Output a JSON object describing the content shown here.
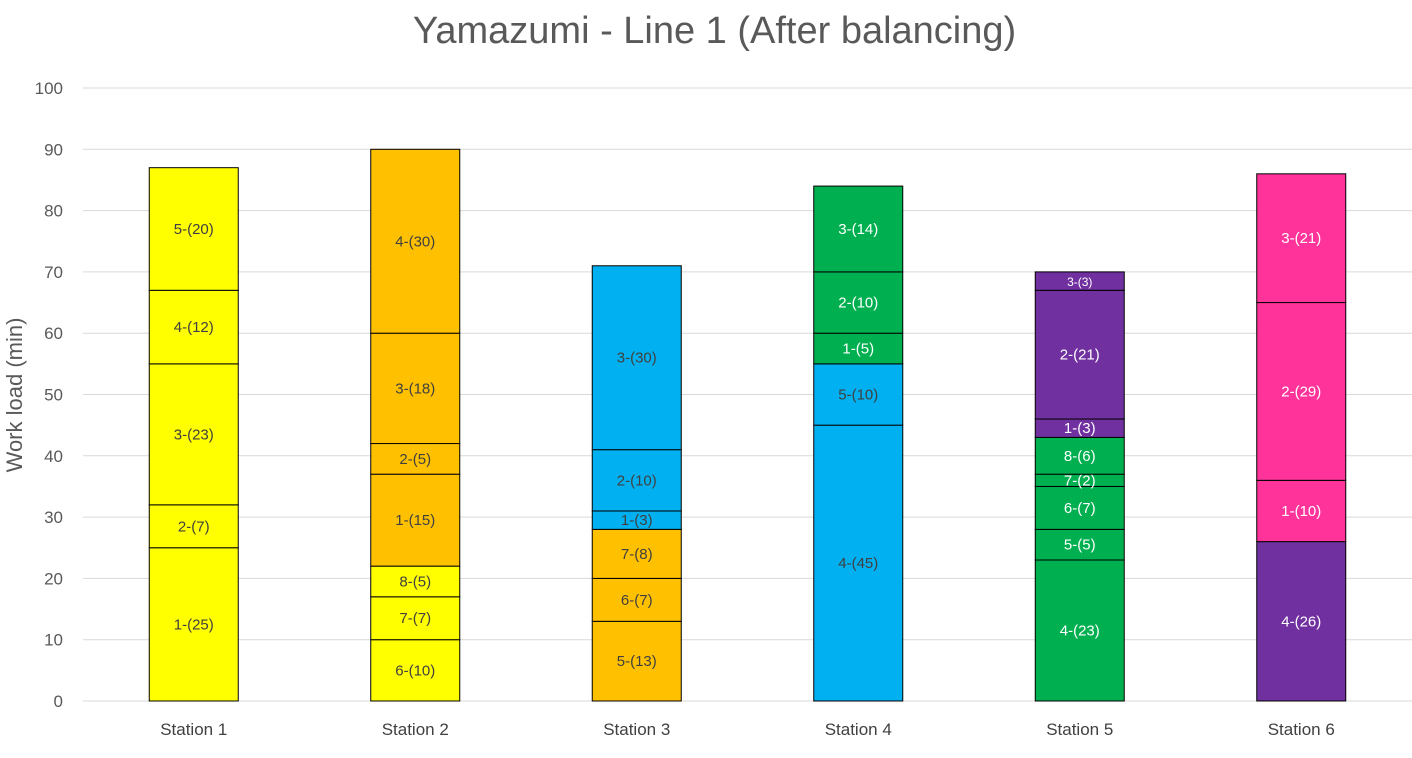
{
  "colors": {
    "yellow": "#FFFF00",
    "orange": "#FFC000",
    "blue": "#00B0F0",
    "green": "#00B050",
    "purple": "#7030A0",
    "pink": "#FF3399",
    "gridline": "#D9D9D9",
    "text": "#595959"
  },
  "chart_data": {
    "type": "bar",
    "stacked": true,
    "title": "Yamazumi - Line 1 (After balancing)",
    "xlabel": "",
    "ylabel": "Work load (min)",
    "ylim": [
      0,
      100
    ],
    "yticks": [
      0,
      10,
      20,
      30,
      40,
      50,
      60,
      70,
      80,
      90,
      100
    ],
    "grid": true,
    "categories": [
      "Station 1",
      "Station 2",
      "Station 3",
      "Station 4",
      "Station 5",
      "Station 6"
    ],
    "stacks": [
      {
        "category": "Station 1",
        "segments": [
          {
            "label": "1-(25)",
            "value": 25,
            "color": "yellow"
          },
          {
            "label": "2-(7)",
            "value": 7,
            "color": "yellow"
          },
          {
            "label": "3-(23)",
            "value": 23,
            "color": "yellow"
          },
          {
            "label": "4-(12)",
            "value": 12,
            "color": "yellow"
          },
          {
            "label": "5-(20)",
            "value": 20,
            "color": "yellow"
          }
        ]
      },
      {
        "category": "Station 2",
        "segments": [
          {
            "label": "6-(10)",
            "value": 10,
            "color": "yellow"
          },
          {
            "label": "7-(7)",
            "value": 7,
            "color": "yellow"
          },
          {
            "label": "8-(5)",
            "value": 5,
            "color": "yellow"
          },
          {
            "label": "1-(15)",
            "value": 15,
            "color": "orange"
          },
          {
            "label": "2-(5)",
            "value": 5,
            "color": "orange"
          },
          {
            "label": "3-(18)",
            "value": 18,
            "color": "orange"
          },
          {
            "label": "4-(30)",
            "value": 30,
            "color": "orange"
          }
        ]
      },
      {
        "category": "Station 3",
        "segments": [
          {
            "label": "5-(13)",
            "value": 13,
            "color": "orange"
          },
          {
            "label": "6-(7)",
            "value": 7,
            "color": "orange"
          },
          {
            "label": "7-(8)",
            "value": 8,
            "color": "orange"
          },
          {
            "label": "1-(3)",
            "value": 3,
            "color": "blue"
          },
          {
            "label": "2-(10)",
            "value": 10,
            "color": "blue"
          },
          {
            "label": "3-(30)",
            "value": 30,
            "color": "blue"
          }
        ]
      },
      {
        "category": "Station 4",
        "segments": [
          {
            "label": "4-(45)",
            "value": 45,
            "color": "blue"
          },
          {
            "label": "5-(10)",
            "value": 10,
            "color": "blue"
          },
          {
            "label": "1-(5)",
            "value": 5,
            "color": "green"
          },
          {
            "label": "2-(10)",
            "value": 10,
            "color": "green"
          },
          {
            "label": "3-(14)",
            "value": 14,
            "color": "green"
          }
        ]
      },
      {
        "category": "Station 5",
        "segments": [
          {
            "label": "4-(23)",
            "value": 23,
            "color": "green"
          },
          {
            "label": "5-(5)",
            "value": 5,
            "color": "green"
          },
          {
            "label": "6-(7)",
            "value": 7,
            "color": "green"
          },
          {
            "label": "7-(2)",
            "value": 2,
            "color": "green"
          },
          {
            "label": "8-(6)",
            "value": 6,
            "color": "green"
          },
          {
            "label": "1-(3)",
            "value": 3,
            "color": "purple"
          },
          {
            "label": "2-(21)",
            "value": 21,
            "color": "purple"
          },
          {
            "label": "3-(3)",
            "value": 3,
            "color": "purple"
          }
        ]
      },
      {
        "category": "Station 6",
        "segments": [
          {
            "label": "4-(26)",
            "value": 26,
            "color": "purple"
          },
          {
            "label": "1-(10)",
            "value": 10,
            "color": "pink"
          },
          {
            "label": "2-(29)",
            "value": 29,
            "color": "pink"
          },
          {
            "label": "3-(21)",
            "value": 21,
            "color": "pink"
          }
        ]
      }
    ]
  }
}
